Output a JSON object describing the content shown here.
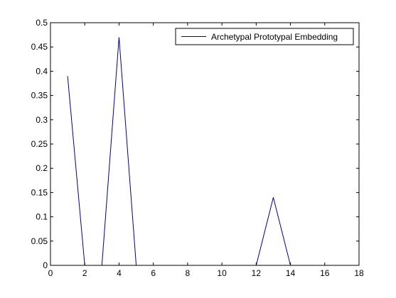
{
  "chart_data": {
    "type": "line",
    "title": "",
    "xlabel": "",
    "ylabel": "",
    "xlim": [
      0,
      18
    ],
    "ylim": [
      0,
      0.5
    ],
    "xticks": [
      0,
      2,
      4,
      6,
      8,
      10,
      12,
      14,
      16,
      18
    ],
    "xtick_labels": [
      "0",
      "2",
      "4",
      "6",
      "8",
      "10",
      "12",
      "14",
      "16",
      "18"
    ],
    "yticks": [
      0,
      0.05,
      0.1,
      0.15,
      0.2,
      0.25,
      0.3,
      0.35,
      0.4,
      0.45,
      0.5
    ],
    "ytick_labels": [
      "0",
      "0.05",
      "0.1",
      "0.15",
      "0.2",
      "0.25",
      "0.3",
      "0.35",
      "0.4",
      "0.45",
      "0.5"
    ],
    "grid": false,
    "legend_position": "top-right",
    "series": [
      {
        "name": "Archetypal Prototypal Embedding",
        "color": "#00008b",
        "x": [
          1,
          2,
          3,
          4,
          5,
          6,
          7,
          8,
          9,
          10,
          11,
          12,
          13,
          14,
          15,
          16,
          17
        ],
        "y": [
          0.39,
          0,
          0,
          0.47,
          0,
          0,
          0,
          0,
          0,
          0,
          0,
          0,
          0.14,
          0,
          0,
          0,
          0
        ]
      }
    ]
  }
}
